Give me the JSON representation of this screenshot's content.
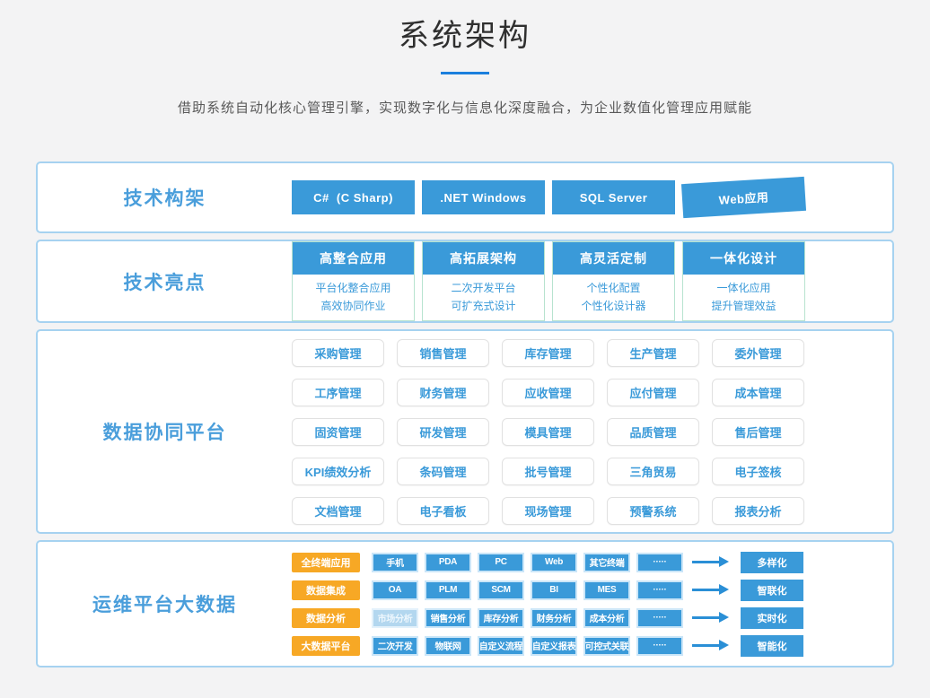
{
  "header": {
    "title": "系统架构",
    "subtitle": "借助系统自动化核心管理引擎，实现数字化与信息化深度融合，为企业数值化管理应用赋能"
  },
  "colors": {
    "primary_blue": "#3a9ad9",
    "label_blue": "#4a9edb",
    "accent_orange": "#f7a825",
    "panel_border": "#a6d2f0",
    "card_border_teal": "#b7e3cf",
    "title_underline": "#1b7fdd"
  },
  "framework": {
    "label": "技术构架",
    "buttons": [
      "C#  (C Sharp)",
      ".NET Windows",
      "SQL Server",
      "Web应用"
    ]
  },
  "highlights": {
    "label": "技术亮点",
    "cards": [
      {
        "title": "高整合应用",
        "line1": "平台化整合应用",
        "line2": "高效协同作业"
      },
      {
        "title": "高拓展架构",
        "line1": "二次开发平台",
        "line2": "可扩充式设计"
      },
      {
        "title": "高灵活定制",
        "line1": "个性化配置",
        "line2": "个性化设计器"
      },
      {
        "title": "一体化设计",
        "line1": "一体化应用",
        "line2": "提升管理效益"
      }
    ]
  },
  "platform": {
    "label": "数据协同平台",
    "modules": [
      "采购管理",
      "销售管理",
      "库存管理",
      "生产管理",
      "委外管理",
      "工序管理",
      "财务管理",
      "应收管理",
      "应付管理",
      "成本管理",
      "固资管理",
      "研发管理",
      "模具管理",
      "品质管理",
      "售后管理",
      "KPI绩效分析",
      "条码管理",
      "批号管理",
      "三角贸易",
      "电子签核",
      "文档管理",
      "电子看板",
      "现场管理",
      "预警系统",
      "报表分析"
    ]
  },
  "bigdata": {
    "label": "运维平台大数据",
    "rows": [
      {
        "category": "全终端应用",
        "items": [
          "手机",
          "PDA",
          "PC",
          "Web",
          "其它终端",
          "·····"
        ],
        "result": "多样化"
      },
      {
        "category": "数据集成",
        "items": [
          "OA",
          "PLM",
          "SCM",
          "BI",
          "MES",
          "·····"
        ],
        "result": "智联化"
      },
      {
        "category": "数据分析",
        "items": [
          "市场分析",
          "销售分析",
          "库存分析",
          "财务分析",
          "成本分析",
          "·····"
        ],
        "result": "实时化"
      },
      {
        "category": "大数据平台",
        "items": [
          "二次开发",
          "物联网",
          "自定义流程",
          "自定义报表",
          "可控式关联",
          "·····"
        ],
        "result": "智能化"
      }
    ]
  }
}
